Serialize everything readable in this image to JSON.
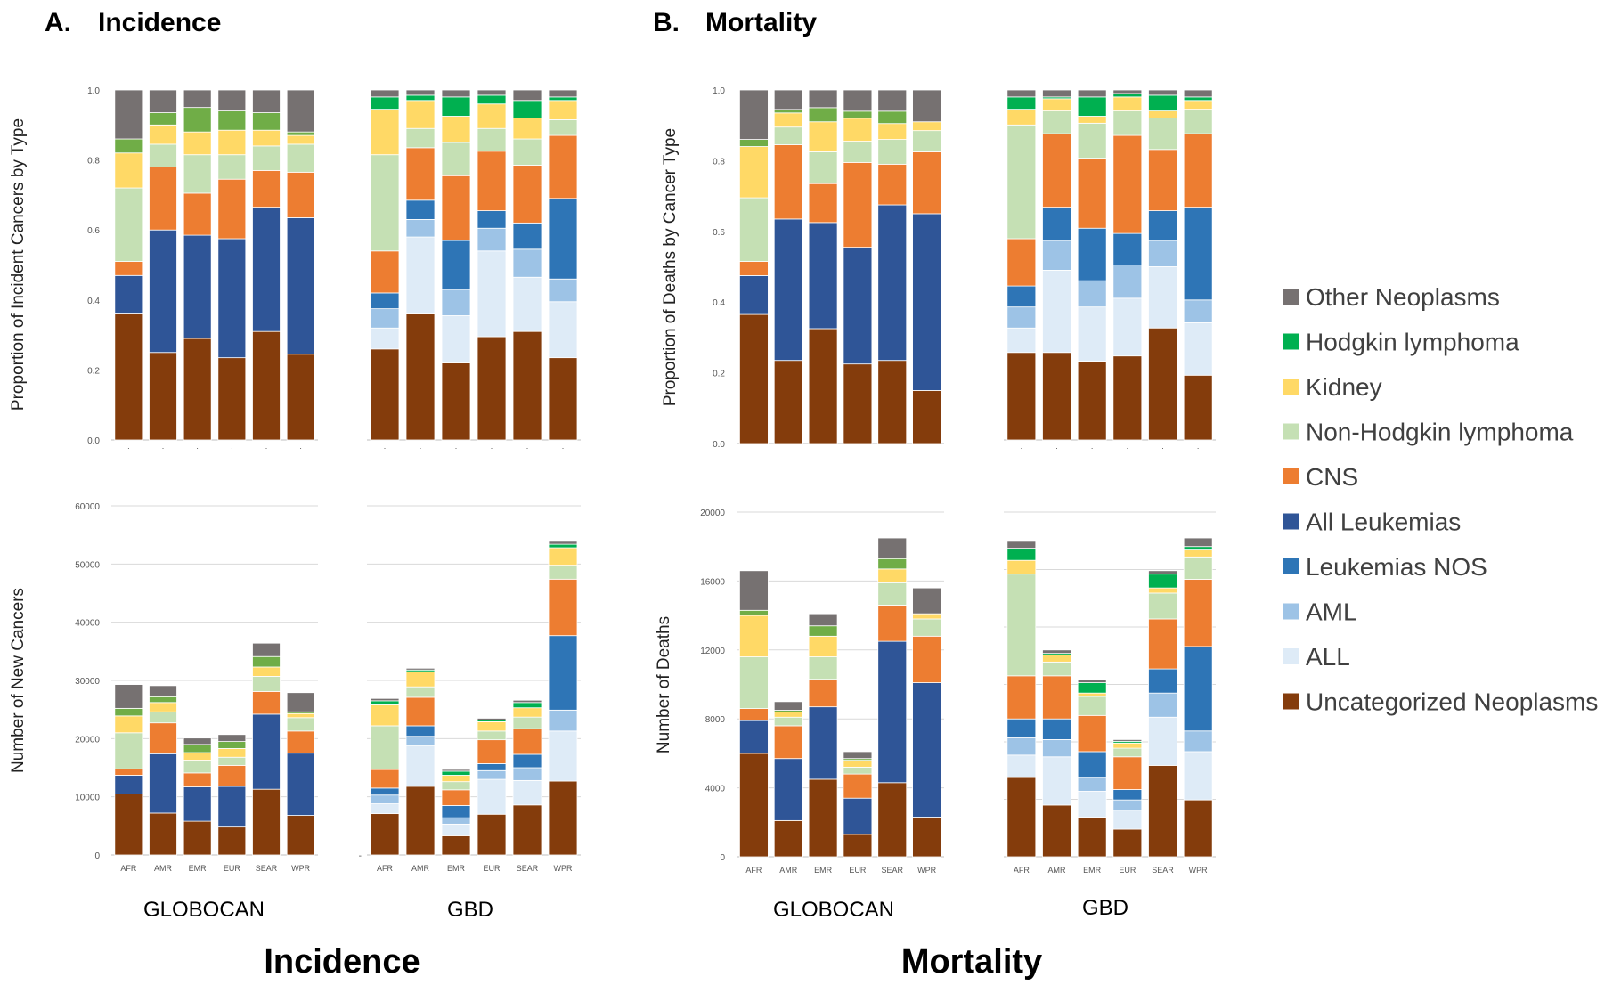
{
  "panels": {
    "a_label": "A.",
    "a_title": "Incidence",
    "b_label": "B.",
    "b_title": "Mortality"
  },
  "bottom_titles": {
    "incidence": "Incidence",
    "mortality": "Mortality"
  },
  "source_labels": {
    "inc_globocan": "GLOBOCAN",
    "inc_gbd": "GBD",
    "mort_globocan": "GLOBOCAN",
    "mort_gbd": "GBD"
  },
  "legend": [
    {
      "name": "Other Neoplasms",
      "color": "#767171"
    },
    {
      "name": "Hodgkin lymphoma",
      "color": "#00B050"
    },
    {
      "name": "Kidney",
      "color": "#FFD966"
    },
    {
      "name": "Non-Hodgkin lymphoma",
      "color": "#C5E0B4"
    },
    {
      "name": "CNS",
      "color": "#ED7D31"
    },
    {
      "name": "All Leukemias",
      "color": "#2F5597"
    },
    {
      "name": "Leukemias NOS",
      "color": "#2E75B6"
    },
    {
      "name": "AML",
      "color": "#9DC3E6"
    },
    {
      "name": "ALL",
      "color": "#DEEBF7"
    },
    {
      "name": "Uncategorized Neoplasms",
      "color": "#843C0C"
    }
  ],
  "chart_data": [
    {
      "id": "inc_prop_globocan",
      "type": "bar",
      "stacked": true,
      "ylabel": "Proportion of Incident Cancers  by Type",
      "ylim": [
        0,
        1.0
      ],
      "yticks": [
        "0.0",
        "0.2",
        "0.4",
        "0.6",
        "0.8",
        "1.0"
      ],
      "categories": [
        "AFR",
        "AMR",
        "EMR",
        "EUR",
        "SEAR",
        "WPR"
      ],
      "show_category_labels": false,
      "series": [
        {
          "name": "Uncategorized Neoplasms",
          "color": "#843C0C",
          "values": [
            0.36,
            0.25,
            0.29,
            0.235,
            0.31,
            0.245
          ]
        },
        {
          "name": "All Leukemias",
          "color": "#2F5597",
          "values": [
            0.11,
            0.35,
            0.295,
            0.34,
            0.355,
            0.39
          ]
        },
        {
          "name": "CNS",
          "color": "#ED7D31",
          "values": [
            0.04,
            0.18,
            0.12,
            0.17,
            0.105,
            0.13
          ]
        },
        {
          "name": "Non-Hodgkin lymphoma",
          "color": "#C5E0B4",
          "values": [
            0.21,
            0.065,
            0.11,
            0.07,
            0.07,
            0.08
          ]
        },
        {
          "name": "Kidney",
          "color": "#FFD966",
          "values": [
            0.1,
            0.055,
            0.065,
            0.07,
            0.045,
            0.025
          ]
        },
        {
          "name": "Hodgkin lymphoma (GLOBOCAN)",
          "color": "#70AD47",
          "values": [
            0.04,
            0.035,
            0.07,
            0.055,
            0.05,
            0.01
          ]
        },
        {
          "name": "Other Neoplasms",
          "color": "#767171",
          "values": [
            0.14,
            0.065,
            0.05,
            0.06,
            0.065,
            0.12
          ]
        }
      ]
    },
    {
      "id": "inc_prop_gbd",
      "type": "bar",
      "stacked": true,
      "ylim": [
        0,
        1.0
      ],
      "categories": [
        "AFR",
        "AMR",
        "EMR",
        "EUR",
        "SEAR",
        "WPR"
      ],
      "show_category_labels": false,
      "series": [
        {
          "name": "Uncategorized Neoplasms",
          "color": "#843C0C",
          "values": [
            0.26,
            0.36,
            0.22,
            0.295,
            0.31,
            0.235
          ]
        },
        {
          "name": "ALL",
          "color": "#DEEBF7",
          "values": [
            0.06,
            0.22,
            0.135,
            0.245,
            0.155,
            0.16
          ]
        },
        {
          "name": "AML",
          "color": "#9DC3E6",
          "values": [
            0.055,
            0.05,
            0.075,
            0.065,
            0.08,
            0.065
          ]
        },
        {
          "name": "Leukemias NOS",
          "color": "#2E75B6",
          "values": [
            0.045,
            0.055,
            0.14,
            0.05,
            0.075,
            0.23
          ]
        },
        {
          "name": "CNS",
          "color": "#ED7D31",
          "values": [
            0.12,
            0.15,
            0.185,
            0.17,
            0.165,
            0.18
          ]
        },
        {
          "name": "Non-Hodgkin lymphoma",
          "color": "#C5E0B4",
          "values": [
            0.275,
            0.055,
            0.095,
            0.065,
            0.075,
            0.045
          ]
        },
        {
          "name": "Kidney",
          "color": "#FFD966",
          "values": [
            0.13,
            0.08,
            0.075,
            0.07,
            0.06,
            0.055
          ]
        },
        {
          "name": "Hodgkin lymphoma",
          "color": "#00B050",
          "values": [
            0.035,
            0.015,
            0.055,
            0.025,
            0.05,
            0.01
          ]
        },
        {
          "name": "Other Neoplasms",
          "color": "#767171",
          "values": [
            0.02,
            0.015,
            0.02,
            0.015,
            0.03,
            0.02
          ]
        }
      ]
    },
    {
      "id": "inc_count_globocan",
      "type": "bar",
      "stacked": true,
      "ylabel": "Number of New Cancers",
      "ylim": [
        0,
        60000
      ],
      "yticks": [
        "0",
        "10000",
        "20000",
        "30000",
        "40000",
        "50000",
        "60000"
      ],
      "categories": [
        "AFR",
        "AMR",
        "EMR",
        "EUR",
        "SEAR",
        "WPR"
      ],
      "show_category_labels": true,
      "series": [
        {
          "name": "Uncategorized Neoplasms",
          "color": "#843C0C",
          "values": [
            10500,
            7200,
            5800,
            4800,
            11300,
            6800
          ]
        },
        {
          "name": "All Leukemias",
          "color": "#2F5597",
          "values": [
            3200,
            10200,
            5900,
            7000,
            12900,
            10700
          ]
        },
        {
          "name": "CNS",
          "color": "#ED7D31",
          "values": [
            1100,
            5300,
            2400,
            3600,
            3900,
            3800
          ]
        },
        {
          "name": "Non-Hodgkin lymphoma",
          "color": "#C5E0B4",
          "values": [
            6200,
            1900,
            2200,
            1400,
            2600,
            2300
          ]
        },
        {
          "name": "Kidney",
          "color": "#FFD966",
          "values": [
            2900,
            1600,
            1300,
            1500,
            1600,
            700
          ]
        },
        {
          "name": "Hodgkin lymphoma (GLOBOCAN)",
          "color": "#70AD47",
          "values": [
            1300,
            1000,
            1400,
            1200,
            1800,
            300
          ]
        },
        {
          "name": "Other Neoplasms",
          "color": "#767171",
          "values": [
            4100,
            1900,
            1100,
            1200,
            2300,
            3300
          ]
        }
      ]
    },
    {
      "id": "inc_count_gbd",
      "type": "bar",
      "stacked": true,
      "ylim": [
        0,
        60000
      ],
      "categories": [
        "AFR",
        "AMR",
        "EMR",
        "EUR",
        "SEAR",
        "WPR"
      ],
      "show_category_labels": true,
      "series": [
        {
          "name": "Uncategorized Neoplasms",
          "color": "#843C0C",
          "values": [
            7100,
            11800,
            3300,
            7000,
            8600,
            12700
          ]
        },
        {
          "name": "ALL",
          "color": "#DEEBF7",
          "values": [
            1700,
            7000,
            2000,
            6000,
            4200,
            8600
          ]
        },
        {
          "name": "AML",
          "color": "#9DC3E6",
          "values": [
            1500,
            1600,
            1100,
            1500,
            2200,
            3600
          ]
        },
        {
          "name": "Leukemias NOS",
          "color": "#2E75B6",
          "values": [
            1200,
            1800,
            2100,
            1200,
            2300,
            12800
          ]
        },
        {
          "name": "CNS",
          "color": "#ED7D31",
          "values": [
            3200,
            4900,
            2700,
            4100,
            4400,
            9700
          ]
        },
        {
          "name": "Non-Hodgkin lymphoma",
          "color": "#C5E0B4",
          "values": [
            7500,
            1800,
            1400,
            1500,
            2000,
            2400
          ]
        },
        {
          "name": "Kidney",
          "color": "#FFD966",
          "values": [
            3600,
            2600,
            1100,
            1600,
            1600,
            3000
          ]
        },
        {
          "name": "Hodgkin lymphoma",
          "color": "#00B050",
          "values": [
            700,
            300,
            700,
            300,
            900,
            600
          ]
        },
        {
          "name": "Other Neoplasms",
          "color": "#767171",
          "values": [
            400,
            300,
            300,
            300,
            400,
            500
          ]
        }
      ]
    },
    {
      "id": "mort_prop_globocan",
      "type": "bar",
      "stacked": true,
      "ylabel": "Proportion of Deaths by Cancer Type",
      "ylim": [
        0,
        1.0
      ],
      "yticks": [
        "0.0",
        "0.2",
        "0.4",
        "0.6",
        "0.8",
        "1.0"
      ],
      "categories": [
        "AFR",
        "AMR",
        "EMR",
        "EUR",
        "SEAR",
        "WPR"
      ],
      "show_category_labels": false,
      "series": [
        {
          "name": "Uncategorized Neoplasms",
          "color": "#843C0C",
          "values": [
            0.365,
            0.235,
            0.325,
            0.225,
            0.235,
            0.15
          ]
        },
        {
          "name": "All Leukemias",
          "color": "#2F5597",
          "values": [
            0.11,
            0.4,
            0.3,
            0.33,
            0.44,
            0.5
          ]
        },
        {
          "name": "CNS",
          "color": "#ED7D31",
          "values": [
            0.04,
            0.21,
            0.11,
            0.24,
            0.115,
            0.175
          ]
        },
        {
          "name": "Non-Hodgkin lymphoma",
          "color": "#C5E0B4",
          "values": [
            0.18,
            0.05,
            0.09,
            0.06,
            0.07,
            0.06
          ]
        },
        {
          "name": "Kidney",
          "color": "#FFD966",
          "values": [
            0.145,
            0.04,
            0.085,
            0.065,
            0.045,
            0.025
          ]
        },
        {
          "name": "Hodgkin lymphoma (GLOBOCAN)",
          "color": "#70AD47",
          "values": [
            0.02,
            0.01,
            0.04,
            0.02,
            0.035,
            0.0
          ]
        },
        {
          "name": "Other Neoplasms",
          "color": "#767171",
          "values": [
            0.14,
            0.055,
            0.05,
            0.06,
            0.06,
            0.09
          ]
        }
      ]
    },
    {
      "id": "mort_prop_gbd",
      "type": "bar",
      "stacked": true,
      "ylim": [
        0,
        1.0
      ],
      "categories": [
        "AFR",
        "AMR",
        "EMR",
        "EUR",
        "SEAR",
        "WPR"
      ],
      "show_category_labels": false,
      "series": [
        {
          "name": "Uncategorized Neoplasms",
          "color": "#843C0C",
          "values": [
            0.25,
            0.25,
            0.225,
            0.24,
            0.32,
            0.185
          ]
        },
        {
          "name": "ALL",
          "color": "#DEEBF7",
          "values": [
            0.07,
            0.235,
            0.155,
            0.165,
            0.175,
            0.15
          ]
        },
        {
          "name": "AML",
          "color": "#9DC3E6",
          "values": [
            0.06,
            0.085,
            0.075,
            0.095,
            0.075,
            0.065
          ]
        },
        {
          "name": "Leukemias NOS",
          "color": "#2E75B6",
          "values": [
            0.06,
            0.095,
            0.15,
            0.09,
            0.085,
            0.265
          ]
        },
        {
          "name": "CNS",
          "color": "#ED7D31",
          "values": [
            0.135,
            0.21,
            0.2,
            0.28,
            0.175,
            0.21
          ]
        },
        {
          "name": "Non-Hodgkin lymphoma",
          "color": "#C5E0B4",
          "values": [
            0.325,
            0.065,
            0.1,
            0.07,
            0.09,
            0.07
          ]
        },
        {
          "name": "Kidney",
          "color": "#FFD966",
          "values": [
            0.045,
            0.035,
            0.02,
            0.04,
            0.02,
            0.025
          ]
        },
        {
          "name": "Hodgkin lymphoma",
          "color": "#00B050",
          "values": [
            0.035,
            0.005,
            0.055,
            0.01,
            0.045,
            0.01
          ]
        },
        {
          "name": "Other Neoplasms",
          "color": "#767171",
          "values": [
            0.02,
            0.02,
            0.02,
            0.01,
            0.015,
            0.02
          ]
        }
      ]
    },
    {
      "id": "mort_count_globocan",
      "type": "bar",
      "stacked": true,
      "ylabel": "Number of Deaths",
      "ylim": [
        0,
        20000
      ],
      "yticks": [
        "0",
        "4000",
        "8000",
        "12000",
        "16000",
        "20000"
      ],
      "categories": [
        "AFR",
        "AMR",
        "EMR",
        "EUR",
        "SEAR",
        "WPR"
      ],
      "show_category_labels": true,
      "series": [
        {
          "name": "Uncategorized Neoplasms",
          "color": "#843C0C",
          "values": [
            6000,
            2100,
            4500,
            1300,
            4300,
            2300
          ]
        },
        {
          "name": "All Leukemias",
          "color": "#2F5597",
          "values": [
            1900,
            3600,
            4200,
            2100,
            8200,
            7800
          ]
        },
        {
          "name": "CNS",
          "color": "#ED7D31",
          "values": [
            700,
            1900,
            1600,
            1400,
            2100,
            2700
          ]
        },
        {
          "name": "Non-Hodgkin lymphoma",
          "color": "#C5E0B4",
          "values": [
            3000,
            500,
            1300,
            400,
            1300,
            1000
          ]
        },
        {
          "name": "Kidney",
          "color": "#FFD966",
          "values": [
            2400,
            300,
            1200,
            400,
            800,
            300
          ]
        },
        {
          "name": "Hodgkin lymphoma (GLOBOCAN)",
          "color": "#70AD47",
          "values": [
            300,
            100,
            600,
            100,
            600,
            0
          ]
        },
        {
          "name": "Other Neoplasms",
          "color": "#767171",
          "values": [
            2300,
            500,
            700,
            400,
            1200,
            1500
          ]
        }
      ]
    },
    {
      "id": "mort_count_gbd",
      "type": "bar",
      "stacked": true,
      "ylim": [
        0,
        20000
      ],
      "categories": [
        "AFR",
        "AMR",
        "EMR",
        "EUR",
        "SEAR",
        "WPR"
      ],
      "show_category_labels": true,
      "series": [
        {
          "name": "Uncategorized Neoplasms",
          "color": "#843C0C",
          "values": [
            4600,
            3000,
            2300,
            1600,
            5300,
            3300
          ]
        },
        {
          "name": "ALL",
          "color": "#DEEBF7",
          "values": [
            1300,
            2800,
            1500,
            1100,
            2800,
            2800
          ]
        },
        {
          "name": "AML",
          "color": "#9DC3E6",
          "values": [
            1000,
            1000,
            800,
            600,
            1400,
            1200
          ]
        },
        {
          "name": "Leukemias NOS",
          "color": "#2E75B6",
          "values": [
            1100,
            1200,
            1500,
            600,
            1400,
            4900
          ]
        },
        {
          "name": "CNS",
          "color": "#ED7D31",
          "values": [
            2500,
            2500,
            2100,
            1900,
            2900,
            3900
          ]
        },
        {
          "name": "Non-Hodgkin lymphoma",
          "color": "#C5E0B4",
          "values": [
            5900,
            800,
            1100,
            500,
            1500,
            1300
          ]
        },
        {
          "name": "Kidney",
          "color": "#FFD966",
          "values": [
            800,
            400,
            200,
            300,
            300,
            400
          ]
        },
        {
          "name": "Hodgkin lymphoma",
          "color": "#00B050",
          "values": [
            700,
            100,
            600,
            100,
            800,
            200
          ]
        },
        {
          "name": "Other Neoplasms",
          "color": "#767171",
          "values": [
            400,
            200,
            200,
            100,
            200,
            500
          ]
        }
      ]
    }
  ]
}
